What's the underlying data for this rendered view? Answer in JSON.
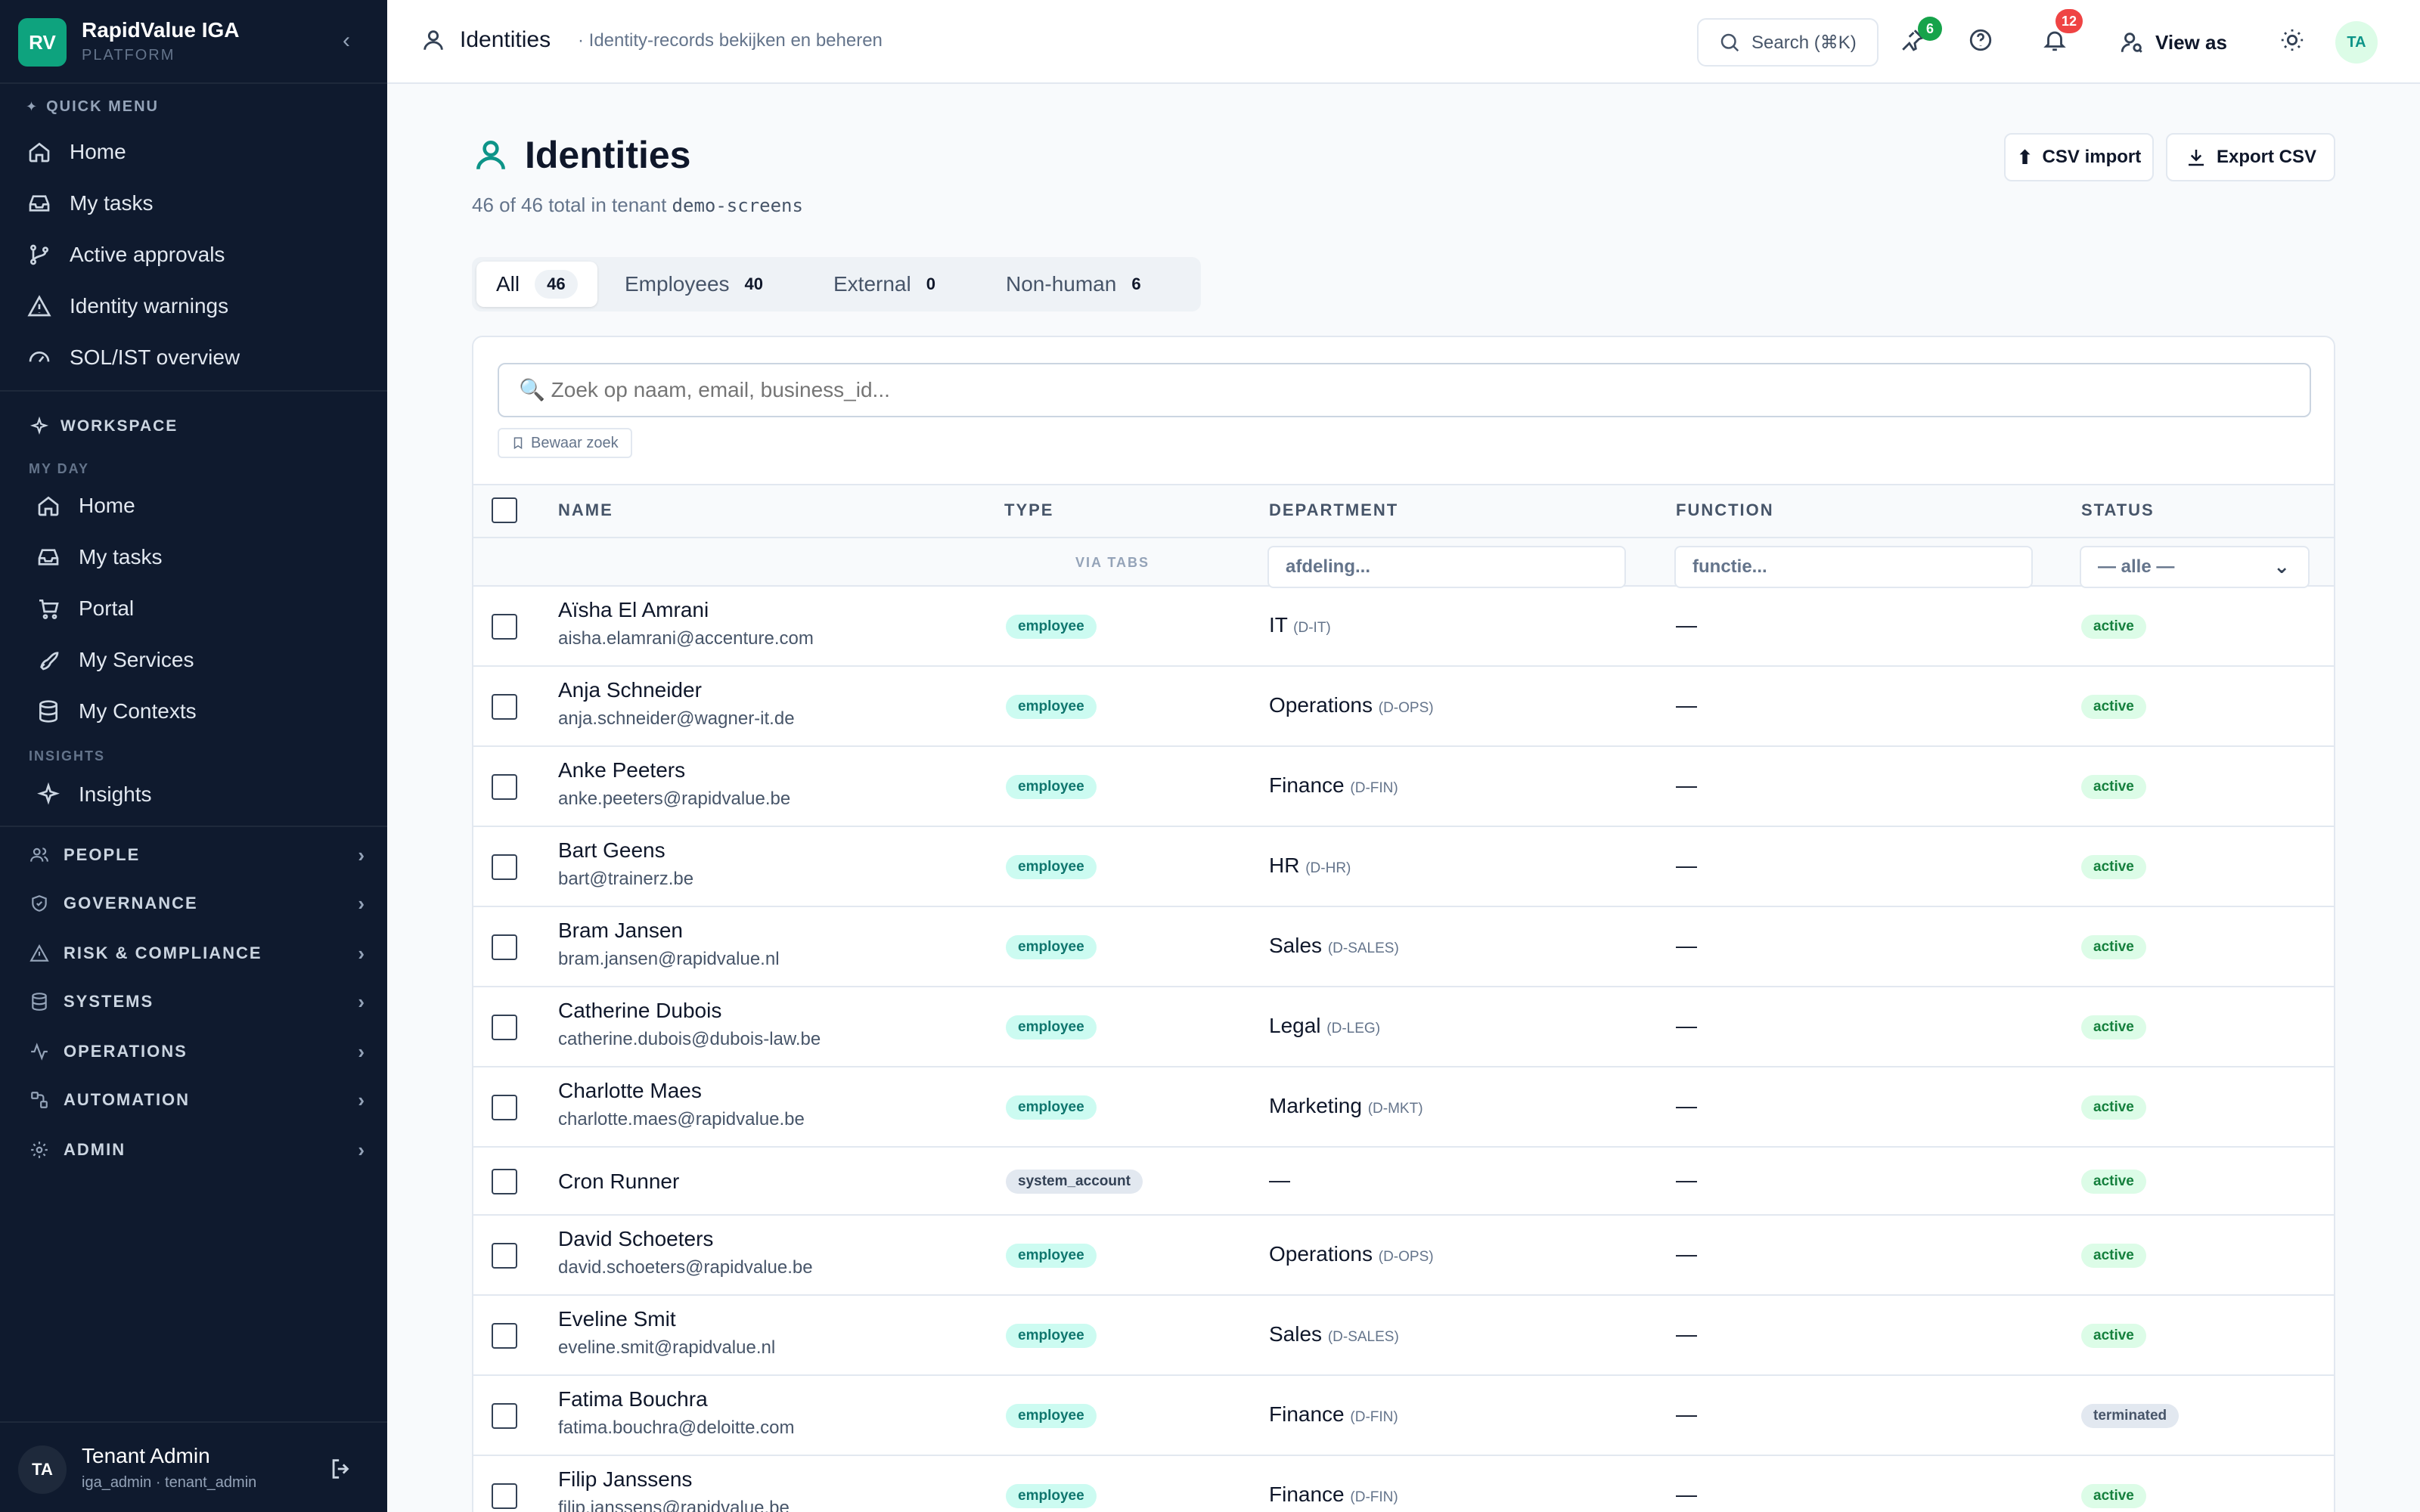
{
  "brand": {
    "logo": "RV",
    "title": "RapidValue IGA",
    "subtitle": "PLATFORM"
  },
  "sidebar": {
    "quick_menu_label": "QUICK MENU",
    "quick_menu": [
      {
        "label": "Home",
        "icon": "home-icon"
      },
      {
        "label": "My tasks",
        "icon": "inbox-icon"
      },
      {
        "label": "Active approvals",
        "icon": "branch-icon"
      },
      {
        "label": "Identity warnings",
        "icon": "warning-icon"
      },
      {
        "label": "SOL/IST overview",
        "icon": "gauge-icon"
      }
    ],
    "workspace_label": "WORKSPACE",
    "my_day_label": "MY DAY",
    "my_day": [
      {
        "label": "Home",
        "icon": "home-icon"
      },
      {
        "label": "My tasks",
        "icon": "inbox-icon"
      },
      {
        "label": "Portal",
        "icon": "cart-icon"
      },
      {
        "label": "My Services",
        "icon": "rocket-icon"
      },
      {
        "label": "My Contexts",
        "icon": "database-icon"
      }
    ],
    "insights_label": "INSIGHTS",
    "insights": [
      {
        "label": "Insights",
        "icon": "sparkles-icon"
      }
    ],
    "groups": [
      {
        "label": "PEOPLE",
        "icon": "users-icon"
      },
      {
        "label": "GOVERNANCE",
        "icon": "shield-icon"
      },
      {
        "label": "RISK & COMPLIANCE",
        "icon": "warning-icon"
      },
      {
        "label": "SYSTEMS",
        "icon": "database-icon"
      },
      {
        "label": "OPERATIONS",
        "icon": "activity-icon"
      },
      {
        "label": "AUTOMATION",
        "icon": "workflow-icon"
      },
      {
        "label": "ADMIN",
        "icon": "gear-icon"
      }
    ],
    "user": {
      "initials": "TA",
      "name": "Tenant Admin",
      "sub": "iga_admin · tenant_admin"
    }
  },
  "topbar": {
    "title": "Identities",
    "subtitle": "· Identity-records bekijken en beheren",
    "search_label": "Search (⌘K)",
    "pin_count": "6",
    "notif_count": "12",
    "view_as": "View as",
    "avatar": "TA"
  },
  "page": {
    "title": "Identities",
    "subtitle_prefix": "46 of 46 total in tenant",
    "tenant": "demo-screens",
    "csv_import": "CSV import",
    "export_csv": "Export CSV"
  },
  "tabs": [
    {
      "label": "All",
      "count": "46"
    },
    {
      "label": "Employees",
      "count": "40"
    },
    {
      "label": "External",
      "count": "0"
    },
    {
      "label": "Non-human",
      "count": "6"
    }
  ],
  "search": {
    "placeholder": "🔍 Zoek op naam, email, business_id...",
    "save_label": "Bewaar zoek"
  },
  "table": {
    "headers": {
      "name": "NAME",
      "type": "TYPE",
      "department": "DEPARTMENT",
      "function": "FUNCTION",
      "status": "STATUS"
    },
    "via_tabs": "VIA TABS",
    "filters": {
      "department": "afdeling...",
      "function": "functie...",
      "status": "— alle —"
    },
    "rows": [
      {
        "name": "Aïsha El Amrani",
        "email": "aisha.elamrani@accenture.com",
        "type": "employee",
        "dept": "IT",
        "code": "(D-IT)",
        "func": "—",
        "status": "active"
      },
      {
        "name": "Anja Schneider",
        "email": "anja.schneider@wagner-it.de",
        "type": "employee",
        "dept": "Operations",
        "code": "(D-OPS)",
        "func": "—",
        "status": "active"
      },
      {
        "name": "Anke Peeters",
        "email": "anke.peeters@rapidvalue.be",
        "type": "employee",
        "dept": "Finance",
        "code": "(D-FIN)",
        "func": "—",
        "status": "active"
      },
      {
        "name": "Bart Geens",
        "email": "bart@trainerz.be",
        "type": "employee",
        "dept": "HR",
        "code": "(D-HR)",
        "func": "—",
        "status": "active"
      },
      {
        "name": "Bram Jansen",
        "email": "bram.jansen@rapidvalue.nl",
        "type": "employee",
        "dept": "Sales",
        "code": "(D-SALES)",
        "func": "—",
        "status": "active"
      },
      {
        "name": "Catherine Dubois",
        "email": "catherine.dubois@dubois-law.be",
        "type": "employee",
        "dept": "Legal",
        "code": "(D-LEG)",
        "func": "—",
        "status": "active"
      },
      {
        "name": "Charlotte Maes",
        "email": "charlotte.maes@rapidvalue.be",
        "type": "employee",
        "dept": "Marketing",
        "code": "(D-MKT)",
        "func": "—",
        "status": "active"
      },
      {
        "name": "Cron Runner",
        "email": "",
        "type": "system_account",
        "dept": "—",
        "code": "",
        "func": "—",
        "status": "active"
      },
      {
        "name": "David Schoeters",
        "email": "david.schoeters@rapidvalue.be",
        "type": "employee",
        "dept": "Operations",
        "code": "(D-OPS)",
        "func": "—",
        "status": "active"
      },
      {
        "name": "Eveline Smit",
        "email": "eveline.smit@rapidvalue.nl",
        "type": "employee",
        "dept": "Sales",
        "code": "(D-SALES)",
        "func": "—",
        "status": "active"
      },
      {
        "name": "Fatima Bouchra",
        "email": "fatima.bouchra@deloitte.com",
        "type": "employee",
        "dept": "Finance",
        "code": "(D-FIN)",
        "func": "—",
        "status": "terminated"
      },
      {
        "name": "Filip Janssens",
        "email": "filip.janssens@rapidvalue.be",
        "type": "employee",
        "dept": "Finance",
        "code": "(D-FIN)",
        "func": "—",
        "status": "active"
      }
    ]
  },
  "colors": {
    "sidebar_bg": "#0f1a2e",
    "accent": "#0ea37e",
    "notif_badge": "#ef4444",
    "pin_badge": "#16a34a"
  }
}
